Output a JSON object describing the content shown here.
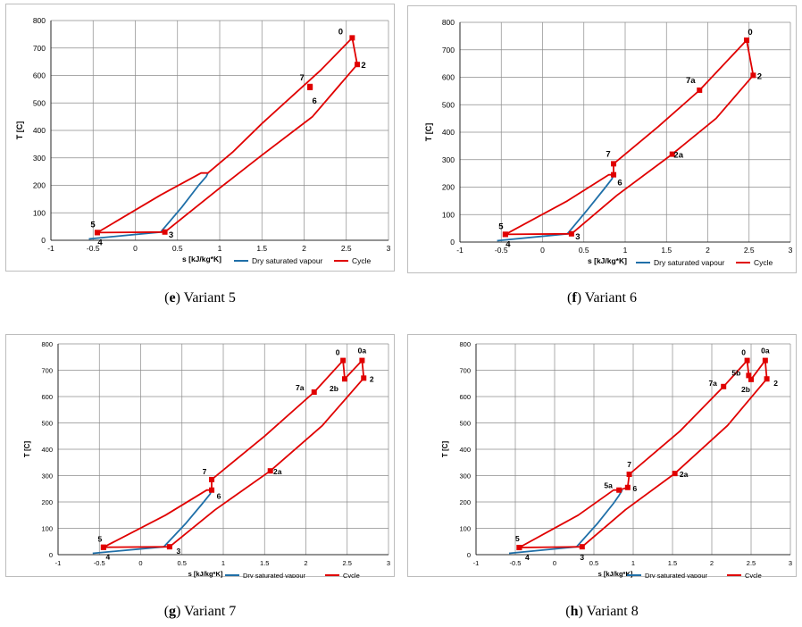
{
  "chart_data": [
    {
      "type": "line",
      "caption_letter": "e",
      "caption_text": "Variant 5",
      "xlabel": "s [kJ/kg*K]",
      "ylabel": "T [C]",
      "xlim": [
        -1,
        3
      ],
      "ylim": [
        0,
        800
      ],
      "xticks": [
        "-1",
        "-0.5",
        "0",
        "0.5",
        "1",
        "1.5",
        "2",
        "2.5",
        "3"
      ],
      "yticks": [
        "0",
        "100",
        "200",
        "300",
        "400",
        "500",
        "600",
        "700",
        "800"
      ],
      "grid": true,
      "legend_position": "bottom",
      "series": [
        {
          "name": "Dry saturated vapour",
          "color": "#1f6fa8",
          "marker": false,
          "x": [
            -0.55,
            0.3,
            0.55,
            0.75,
            0.84,
            0.86
          ],
          "y": [
            5,
            30,
            120,
            200,
            232,
            245
          ]
        },
        {
          "name": "Cycle",
          "color": "#e00000",
          "marker": false,
          "x": [
            2.63,
            2.57,
            2.2,
            1.5,
            1.15,
            0.86,
            0.78,
            0.3,
            -0.45,
            -0.45,
            0.35,
            1.0,
            1.5,
            2.1,
            2.63
          ],
          "y": [
            640,
            737,
            620,
            425,
            320,
            245,
            245,
            165,
            28,
            28,
            30,
            190,
            310,
            450,
            640
          ]
        }
      ],
      "points": [
        {
          "label": "0",
          "x": 2.57,
          "y": 737,
          "lx": -13,
          "ly": -4
        },
        {
          "label": "2",
          "x": 2.63,
          "y": 640,
          "lx": 7,
          "ly": 4
        },
        {
          "label": "7",
          "x": 2.07,
          "y": 560,
          "lx": -9,
          "ly": -7
        },
        {
          "label": "6",
          "x": 2.07,
          "y": 556,
          "lx": 5,
          "ly": 18
        },
        {
          "label": "5",
          "x": -0.45,
          "y": 28,
          "lx": -5,
          "ly": -6
        },
        {
          "label": "4",
          "x": -0.45,
          "y": 28,
          "lx": 3,
          "ly": 14
        },
        {
          "label": "3",
          "x": 0.35,
          "y": 30,
          "lx": 7,
          "ly": 6
        }
      ]
    },
    {
      "type": "line",
      "caption_letter": "f",
      "caption_text": "Variant 6",
      "xlabel": "s [kJ/kg*K]",
      "ylabel": "T [C]",
      "xlim": [
        -1,
        3
      ],
      "ylim": [
        0,
        800
      ],
      "xticks": [
        "-1",
        "-0.5",
        "0",
        "0.5",
        "1",
        "1.5",
        "2",
        "2.5",
        "3"
      ],
      "yticks": [
        "0",
        "100",
        "200",
        "300",
        "400",
        "500",
        "600",
        "700",
        "800"
      ],
      "grid": true,
      "legend_position": "bottom",
      "series": [
        {
          "name": "Dry saturated vapour",
          "color": "#1f6fa8",
          "marker": false,
          "x": [
            -0.55,
            0.3,
            0.55,
            0.75,
            0.84,
            0.86
          ],
          "y": [
            5,
            30,
            120,
            195,
            230,
            245
          ]
        },
        {
          "name": "Cycle",
          "color": "#e00000",
          "marker": false,
          "x": [
            2.55,
            2.47,
            1.9,
            1.4,
            0.86,
            0.86,
            0.8,
            0.3,
            -0.45,
            -0.45,
            0.35,
            0.9,
            1.57,
            2.1,
            2.55
          ],
          "y": [
            607,
            735,
            553,
            420,
            285,
            245,
            245,
            150,
            28,
            28,
            30,
            170,
            320,
            450,
            607
          ]
        }
      ],
      "points": [
        {
          "label": "0",
          "x": 2.47,
          "y": 735,
          "lx": 4,
          "ly": -6
        },
        {
          "label": "2",
          "x": 2.55,
          "y": 607,
          "lx": 7,
          "ly": 4
        },
        {
          "label": "7a",
          "x": 1.9,
          "y": 553,
          "lx": -10,
          "ly": -8
        },
        {
          "label": "7",
          "x": 0.86,
          "y": 285,
          "lx": -6,
          "ly": -8
        },
        {
          "label": "6",
          "x": 0.86,
          "y": 245,
          "lx": 7,
          "ly": 12
        },
        {
          "label": "2a",
          "x": 1.57,
          "y": 320,
          "lx": 7,
          "ly": 4
        },
        {
          "label": "5",
          "x": -0.45,
          "y": 28,
          "lx": -5,
          "ly": -6
        },
        {
          "label": "4",
          "x": -0.45,
          "y": 28,
          "lx": 3,
          "ly": 14
        },
        {
          "label": "3",
          "x": 0.35,
          "y": 30,
          "lx": 7,
          "ly": 6
        }
      ]
    },
    {
      "type": "line",
      "caption_letter": "g",
      "caption_text": "Variant 7",
      "xlabel": "s [kJ/kg*K]",
      "ylabel": "T [C]",
      "xlim": [
        -1,
        3
      ],
      "ylim": [
        0,
        800
      ],
      "xticks": [
        "-1",
        "-0.5",
        "0",
        "0.5",
        "1",
        "1.5",
        "2",
        "2.5",
        "3"
      ],
      "yticks": [
        "0",
        "100",
        "200",
        "300",
        "400",
        "500",
        "600",
        "700",
        "800"
      ],
      "grid": true,
      "legend_position": "bottom",
      "series": [
        {
          "name": "Dry saturated vapour",
          "color": "#1f6fa8",
          "marker": false,
          "x": [
            -0.58,
            0.28,
            0.55,
            0.75,
            0.84,
            0.86
          ],
          "y": [
            5,
            30,
            120,
            195,
            230,
            245
          ]
        },
        {
          "name": "Cycle",
          "color": "#e00000",
          "marker": false,
          "x": [
            2.7,
            2.68,
            2.47,
            2.45,
            2.1,
            1.5,
            0.86,
            0.86,
            0.8,
            0.3,
            -0.45,
            -0.45,
            0.35,
            0.9,
            1.57,
            2.2,
            2.7
          ],
          "y": [
            670,
            737,
            667,
            737,
            617,
            450,
            285,
            245,
            245,
            150,
            28,
            28,
            30,
            170,
            318,
            490,
            670
          ]
        }
      ],
      "points": [
        {
          "label": "0",
          "x": 2.45,
          "y": 737,
          "lx": -6,
          "ly": -6
        },
        {
          "label": "0a",
          "x": 2.68,
          "y": 737,
          "lx": 0,
          "ly": -8
        },
        {
          "label": "2b",
          "x": 2.47,
          "y": 667,
          "lx": -12,
          "ly": 14
        },
        {
          "label": "2",
          "x": 2.7,
          "y": 670,
          "lx": 9,
          "ly": 4
        },
        {
          "label": "7a",
          "x": 2.1,
          "y": 617,
          "lx": -16,
          "ly": -2
        },
        {
          "label": "7",
          "x": 0.86,
          "y": 285,
          "lx": -8,
          "ly": -6
        },
        {
          "label": "6",
          "x": 0.86,
          "y": 245,
          "lx": 8,
          "ly": 10
        },
        {
          "label": "2a",
          "x": 1.57,
          "y": 318,
          "lx": 8,
          "ly": 4
        },
        {
          "label": "5",
          "x": -0.45,
          "y": 28,
          "lx": -4,
          "ly": -6
        },
        {
          "label": "4",
          "x": -0.45,
          "y": 28,
          "lx": 5,
          "ly": 14
        },
        {
          "label": "3",
          "x": 0.35,
          "y": 30,
          "lx": 10,
          "ly": 8
        }
      ]
    },
    {
      "type": "line",
      "caption_letter": "h",
      "caption_text": "Variant 8",
      "xlabel": "s [kJ/kg*K]",
      "ylabel": "T [C]",
      "xlim": [
        -1,
        3
      ],
      "ylim": [
        0,
        800
      ],
      "xticks": [
        "-1",
        "-0.5",
        "0",
        "0.5",
        "1",
        "1.5",
        "2",
        "2.5",
        "3"
      ],
      "yticks": [
        "0",
        "100",
        "200",
        "300",
        "400",
        "500",
        "600",
        "700",
        "800"
      ],
      "grid": true,
      "legend_position": "bottom",
      "series": [
        {
          "name": "Dry saturated vapour",
          "color": "#1f6fa8",
          "marker": false,
          "x": [
            -0.58,
            0.28,
            0.55,
            0.75,
            0.82,
            0.86
          ],
          "y": [
            5,
            30,
            120,
            195,
            225,
            245
          ]
        },
        {
          "name": "Cycle",
          "color": "#e00000",
          "marker": false,
          "x": [
            2.7,
            2.68,
            2.5,
            2.47,
            2.45,
            2.15,
            1.6,
            0.95,
            0.93,
            0.82,
            0.75,
            0.3,
            -0.45,
            -0.45,
            0.35,
            0.9,
            1.53,
            2.2,
            2.7
          ],
          "y": [
            667,
            737,
            665,
            680,
            737,
            638,
            470,
            305,
            255,
            245,
            245,
            150,
            27,
            27,
            30,
            170,
            308,
            490,
            667
          ]
        }
      ],
      "points": [
        {
          "label": "0",
          "x": 2.45,
          "y": 737,
          "lx": -4,
          "ly": -6
        },
        {
          "label": "0a",
          "x": 2.68,
          "y": 737,
          "lx": 0,
          "ly": -8
        },
        {
          "label": "5b",
          "x": 2.47,
          "y": 680,
          "lx": -14,
          "ly": 0
        },
        {
          "label": "2b",
          "x": 2.5,
          "y": 665,
          "lx": -6,
          "ly": 14
        },
        {
          "label": "2",
          "x": 2.7,
          "y": 667,
          "lx": 10,
          "ly": 8
        },
        {
          "label": "7a",
          "x": 2.15,
          "y": 638,
          "lx": -12,
          "ly": -1
        },
        {
          "label": "7",
          "x": 0.95,
          "y": 305,
          "lx": 0,
          "ly": -8
        },
        {
          "label": "5a",
          "x": 0.82,
          "y": 245,
          "lx": -12,
          "ly": -2
        },
        {
          "label": "6",
          "x": 0.93,
          "y": 255,
          "lx": 8,
          "ly": 4
        },
        {
          "label": "2a",
          "x": 1.53,
          "y": 308,
          "lx": 10,
          "ly": 4
        },
        {
          "label": "5",
          "x": -0.45,
          "y": 27,
          "lx": -2,
          "ly": -7
        },
        {
          "label": "4",
          "x": -0.45,
          "y": 27,
          "lx": 9,
          "ly": 14
        },
        {
          "label": "3",
          "x": 0.35,
          "y": 30,
          "lx": 0,
          "ly": 15
        }
      ]
    }
  ]
}
